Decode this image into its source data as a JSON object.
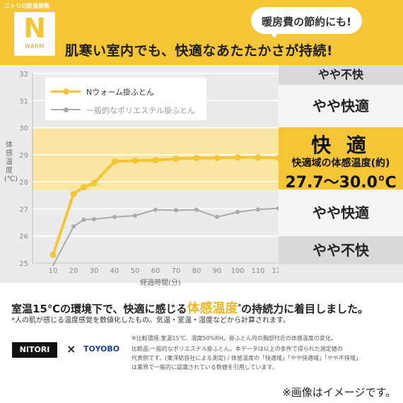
{
  "header": {
    "brand_tag": "ニトリの防湿発熱",
    "logo_letter": "N",
    "logo_word": "WARM",
    "bubble": "暖房費の節約にも!",
    "headline": "肌寒い室内でも、快適なあたたかさが持続!"
  },
  "legend": {
    "nwarm": "Nウォーム掛ふとん",
    "poly": "一般的なポリエステル掛ふとん"
  },
  "zones": {
    "top": "やや不快",
    "slight_comfort_1": "やや快適",
    "comfort": "快 適",
    "comfort_sub": "快適域の体感温度(約)",
    "comfort_range": "27.7〜30.0℃",
    "slight_comfort_2": "やや快適",
    "bottom": "やや不快"
  },
  "colors": {
    "accent": "#f4c534",
    "comfort_band": "#f9e6a3",
    "poly_line": "#aaaaaa",
    "background": "#ebebeb"
  },
  "chart_data": {
    "type": "line",
    "title": "",
    "xlabel": "経過時間(分)",
    "ylabel": "体感温度(℃)",
    "x": [
      10,
      20,
      25,
      30,
      40,
      50,
      60,
      70,
      80,
      90,
      100,
      110,
      120
    ],
    "xticks": [
      10,
      20,
      30,
      40,
      50,
      60,
      70,
      80,
      90,
      100,
      110,
      120
    ],
    "xlim": [
      0,
      120
    ],
    "yticks": [
      25,
      26,
      27,
      28,
      29,
      30,
      31,
      32
    ],
    "ylim": [
      25,
      32
    ],
    "comfort_band": [
      27.7,
      30.0
    ],
    "series": [
      {
        "name": "Nウォーム掛ふとん",
        "values": [
          25.3,
          27.55,
          27.8,
          27.95,
          28.75,
          28.78,
          28.8,
          28.85,
          28.88,
          28.88,
          28.9,
          28.9,
          28.88
        ]
      },
      {
        "name": "一般的なポリエステル掛ふとん",
        "values": [
          24.9,
          26.35,
          26.6,
          26.62,
          26.7,
          26.75,
          26.97,
          26.95,
          26.97,
          26.7,
          26.88,
          26.98,
          27.02
        ]
      }
    ]
  },
  "text": {
    "lead_a": "室温15℃の環境下で、快適に感じる",
    "lead_hl": "体感温度",
    "lead_sup": "*",
    "lead_b": "の持続力に着目しました。",
    "note": "*人の肌が感じる温度感覚を数値化したもの。気温・室温・湿度などから計算されます。",
    "nitori": "NITORI",
    "times": "×",
    "toyobo": "TOYOBO",
    "fine1": "※比較環境:室温15℃、湿度50%RH。掛ふとん内の胸部付近の体感温度の変化。",
    "fine2": "比較品:一般的なポリエステル掛ふとん。本データは以上の条件で得られた測定値の",
    "fine3": "代表例です。(東洋紡自社による測定) / 体感温度の「快適域」「やや快適域」「やや不快域」",
    "fine4": "は業界で一般的に認識されている数値を引用しています。",
    "footer": "※画像はイメージです。"
  }
}
